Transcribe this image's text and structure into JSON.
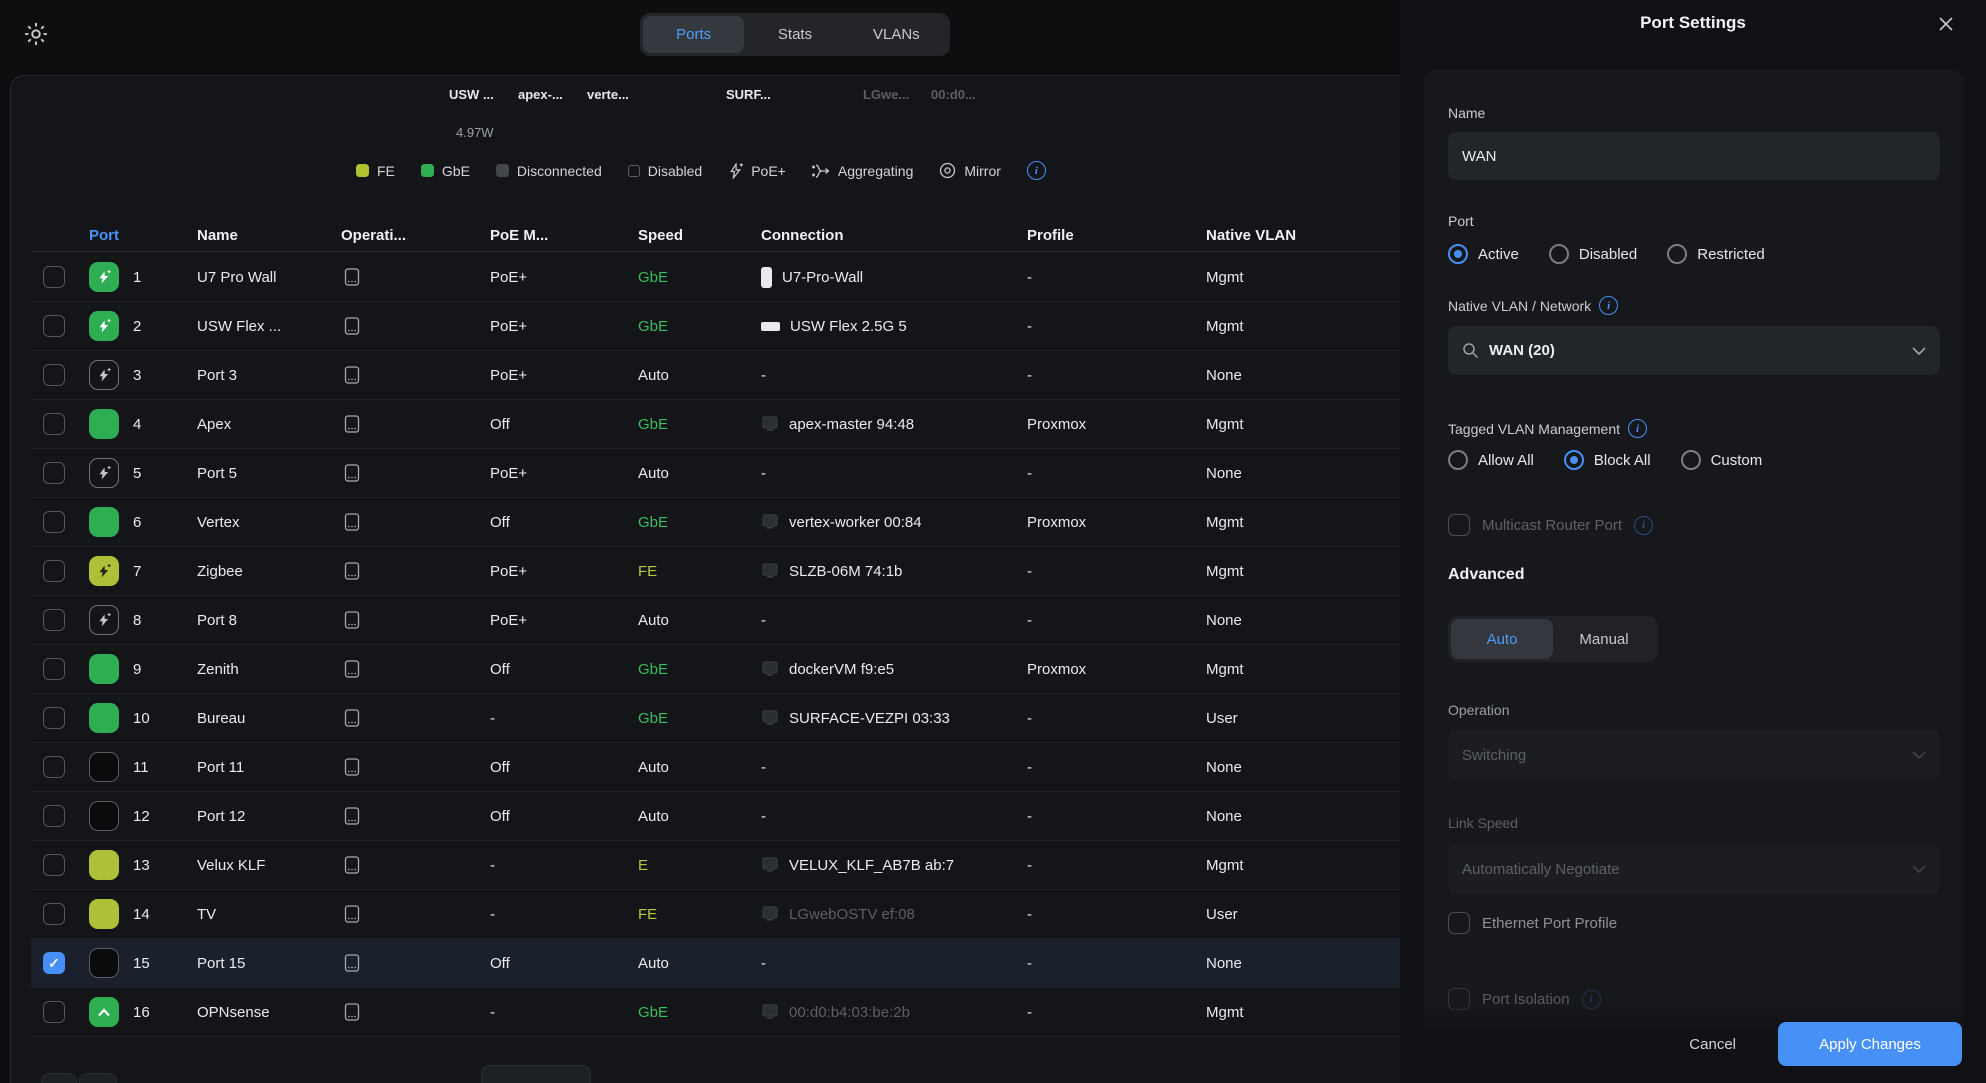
{
  "topbar": {
    "tabs": [
      {
        "label": "Ports",
        "active": true
      },
      {
        "label": "Stats",
        "active": false
      },
      {
        "label": "VLANs",
        "active": false
      }
    ]
  },
  "overview": {
    "device_labels": [
      {
        "text": "USW ...",
        "dim": false
      },
      {
        "text": "apex-...",
        "dim": false
      },
      {
        "text": "verte...",
        "dim": false
      },
      {
        "text": "SURF...",
        "dim": false
      },
      {
        "text": "LGwe...",
        "dim": true
      },
      {
        "text": "00:d0...",
        "dim": true
      }
    ],
    "power_label": "4.97W"
  },
  "legend": {
    "items": [
      {
        "label": "FE",
        "swatch": "#b3c230"
      },
      {
        "label": "GbE",
        "swatch": "#2fad52"
      },
      {
        "label": "Disconnected",
        "swatch": "#43464b"
      },
      {
        "label": "Disabled",
        "swatch": "outline"
      },
      {
        "label": "PoE+",
        "icon": "poe-bolt-icon"
      },
      {
        "label": "Aggregating",
        "icon": "aggregating-icon"
      },
      {
        "label": "Mirror",
        "icon": "mirror-icon"
      }
    ]
  },
  "table": {
    "columns": [
      "Port",
      "Name",
      "Operati...",
      "PoE M...",
      "Speed",
      "Connection",
      "Profile",
      "Native VLAN"
    ],
    "rows": [
      {
        "num": "1",
        "checked": false,
        "selected": false,
        "port_icon": "green",
        "glyph": "bolt",
        "name": "U7 Pro Wall",
        "poe": "PoE+",
        "speed": "GbE",
        "speed_class": "green",
        "conn_icon": "ap",
        "conn_text": "U7-Pro-Wall",
        "conn_dim": false,
        "profile": "-",
        "vlan": "Mgmt"
      },
      {
        "num": "2",
        "checked": false,
        "selected": false,
        "port_icon": "green",
        "glyph": "bolt",
        "name": "USW Flex ...",
        "poe": "PoE+",
        "speed": "GbE",
        "speed_class": "green",
        "conn_icon": "switch",
        "conn_text": "USW Flex 2.5G 5",
        "conn_dim": false,
        "profile": "-",
        "vlan": "Mgmt"
      },
      {
        "num": "3",
        "checked": false,
        "selected": false,
        "port_icon": "outline",
        "glyph": "bolt",
        "name": "Port 3",
        "poe": "PoE+",
        "speed": "Auto",
        "speed_class": "default",
        "conn_icon": "none",
        "conn_text": "-",
        "conn_dim": false,
        "profile": "-",
        "vlan": "None"
      },
      {
        "num": "4",
        "checked": false,
        "selected": false,
        "port_icon": "green",
        "glyph": "none",
        "name": "Apex",
        "poe": "Off",
        "speed": "GbE",
        "speed_class": "green",
        "conn_icon": "client",
        "conn_text": "apex-master 94:48",
        "conn_dim": false,
        "profile": "Proxmox",
        "vlan": "Mgmt"
      },
      {
        "num": "5",
        "checked": false,
        "selected": false,
        "port_icon": "outline",
        "glyph": "bolt",
        "name": "Port 5",
        "poe": "PoE+",
        "speed": "Auto",
        "speed_class": "default",
        "conn_icon": "none",
        "conn_text": "-",
        "conn_dim": false,
        "profile": "-",
        "vlan": "None"
      },
      {
        "num": "6",
        "checked": false,
        "selected": false,
        "port_icon": "green",
        "glyph": "none",
        "name": "Vertex",
        "poe": "Off",
        "speed": "GbE",
        "speed_class": "green",
        "conn_icon": "client",
        "conn_text": "vertex-worker 00:84",
        "conn_dim": false,
        "profile": "Proxmox",
        "vlan": "Mgmt"
      },
      {
        "num": "7",
        "checked": false,
        "selected": false,
        "port_icon": "yellow",
        "glyph": "bolt",
        "name": "Zigbee",
        "poe": "PoE+",
        "speed": "FE",
        "speed_class": "yellow",
        "conn_icon": "client",
        "conn_text": "SLZB-06M 74:1b",
        "conn_dim": false,
        "profile": "-",
        "vlan": "Mgmt"
      },
      {
        "num": "8",
        "checked": false,
        "selected": false,
        "port_icon": "outline",
        "glyph": "bolt",
        "name": "Port 8",
        "poe": "PoE+",
        "speed": "Auto",
        "speed_class": "default",
        "conn_icon": "none",
        "conn_text": "-",
        "conn_dim": false,
        "profile": "-",
        "vlan": "None"
      },
      {
        "num": "9",
        "checked": false,
        "selected": false,
        "port_icon": "green",
        "glyph": "none",
        "name": "Zenith",
        "poe": "Off",
        "speed": "GbE",
        "speed_class": "green",
        "conn_icon": "client",
        "conn_text": "dockerVM f9:e5",
        "conn_dim": false,
        "profile": "Proxmox",
        "vlan": "Mgmt"
      },
      {
        "num": "10",
        "checked": false,
        "selected": false,
        "port_icon": "green",
        "glyph": "none",
        "name": "Bureau",
        "poe": "-",
        "speed": "GbE",
        "speed_class": "green",
        "conn_icon": "client",
        "conn_text": "SURFACE-VEZPI 03:33",
        "conn_dim": false,
        "profile": "-",
        "vlan": "User"
      },
      {
        "num": "11",
        "checked": false,
        "selected": false,
        "port_icon": "dark",
        "glyph": "none",
        "name": "Port 11",
        "poe": "Off",
        "speed": "Auto",
        "speed_class": "default",
        "conn_icon": "none",
        "conn_text": "-",
        "conn_dim": false,
        "profile": "-",
        "vlan": "None"
      },
      {
        "num": "12",
        "checked": false,
        "selected": false,
        "port_icon": "dark",
        "glyph": "none",
        "name": "Port 12",
        "poe": "Off",
        "speed": "Auto",
        "speed_class": "default",
        "conn_icon": "none",
        "conn_text": "-",
        "conn_dim": false,
        "profile": "-",
        "vlan": "None"
      },
      {
        "num": "13",
        "checked": false,
        "selected": false,
        "port_icon": "yellow",
        "glyph": "none",
        "name": "Velux KLF",
        "poe": "-",
        "speed": "E",
        "speed_class": "yellow",
        "conn_icon": "client",
        "conn_text": "VELUX_KLF_AB7B ab:7",
        "conn_dim": false,
        "profile": "-",
        "vlan": "Mgmt"
      },
      {
        "num": "14",
        "checked": false,
        "selected": false,
        "port_icon": "yellow",
        "glyph": "none",
        "name": "TV",
        "poe": "-",
        "speed": "FE",
        "speed_class": "yellow",
        "conn_icon": "client",
        "conn_text": "LGwebOSTV ef:08",
        "conn_dim": true,
        "profile": "-",
        "vlan": "User"
      },
      {
        "num": "15",
        "checked": true,
        "selected": true,
        "port_icon": "dark",
        "glyph": "none",
        "name": "Port 15",
        "poe": "Off",
        "speed": "Auto",
        "speed_class": "default",
        "conn_icon": "none",
        "conn_text": "-",
        "conn_dim": false,
        "profile": "-",
        "vlan": "None"
      },
      {
        "num": "16",
        "checked": false,
        "selected": false,
        "port_icon": "green",
        "glyph": "chevron",
        "name": "OPNsense",
        "poe": "-",
        "speed": "GbE",
        "speed_class": "green",
        "conn_icon": "client",
        "conn_text": "00:d0:b4:03:be:2b",
        "conn_dim": true,
        "profile": "-",
        "vlan": "Mgmt"
      }
    ]
  },
  "panel": {
    "title": "Port Settings",
    "name_field": {
      "label": "Name",
      "value": "WAN"
    },
    "port_state": {
      "label": "Port",
      "options": [
        "Active",
        "Disabled",
        "Restricted"
      ],
      "selected": "Active"
    },
    "native_vlan": {
      "label": "Native VLAN / Network",
      "value": "WAN (20)"
    },
    "tagged_vlan": {
      "label": "Tagged VLAN Management",
      "options": [
        "Allow All",
        "Block All",
        "Custom"
      ],
      "selected": "Block All"
    },
    "multicast": {
      "label": "Multicast Router Port",
      "checked": false,
      "disabled": true
    },
    "advanced": {
      "heading": "Advanced",
      "mode_options": [
        "Auto",
        "Manual"
      ],
      "mode_selected": "Auto",
      "operation": {
        "label": "Operation",
        "value": "Switching",
        "disabled": true
      },
      "link_speed": {
        "label": "Link Speed",
        "value": "Automatically Negotiate",
        "disabled": true
      },
      "ethernet_port_profile": {
        "label": "Ethernet Port Profile",
        "checked": false
      },
      "port_isolation": {
        "label": "Port Isolation",
        "checked": false
      }
    },
    "footer": {
      "cancel_label": "Cancel",
      "apply_label": "Apply Changes"
    }
  },
  "colors": {
    "accent_blue": "#478ff5",
    "green": "#2fad52",
    "green_text": "#3cbd5f",
    "yellow_green": "#afc038",
    "disconnected_gray": "#43464b",
    "selected_row": "#1a212d",
    "apply_button": "#4791f6"
  }
}
